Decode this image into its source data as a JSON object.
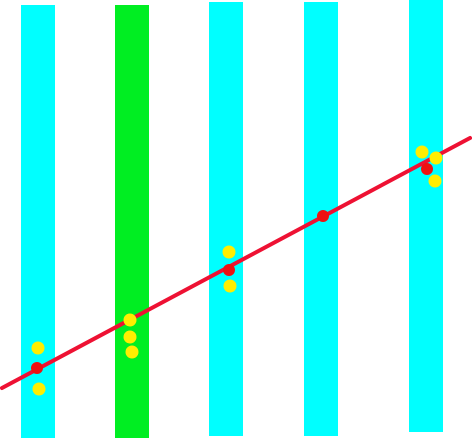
{
  "colors": {
    "background": "#ffffff",
    "column_default": "#00ffff",
    "column_highlight": "#00ee22",
    "line": "#ee1133",
    "point_yellow": "#ffee00",
    "point_red": "#ee1111"
  },
  "columns": [
    {
      "index": 0,
      "highlighted": false
    },
    {
      "index": 1,
      "highlighted": true
    },
    {
      "index": 2,
      "highlighted": false
    },
    {
      "index": 3,
      "highlighted": false
    },
    {
      "index": 4,
      "highlighted": false
    }
  ],
  "points": [
    {
      "column": 0,
      "color": "yellow"
    },
    {
      "column": 0,
      "color": "red"
    },
    {
      "column": 0,
      "color": "yellow"
    },
    {
      "column": 1,
      "color": "yellow"
    },
    {
      "column": 1,
      "color": "yellow"
    },
    {
      "column": 1,
      "color": "yellow"
    },
    {
      "column": 2,
      "color": "yellow"
    },
    {
      "column": 2,
      "color": "red"
    },
    {
      "column": 2,
      "color": "yellow"
    },
    {
      "column": 3,
      "color": "red"
    },
    {
      "column": 4,
      "color": "yellow"
    },
    {
      "column": 4,
      "color": "yellow"
    },
    {
      "column": 4,
      "color": "red"
    },
    {
      "column": 4,
      "color": "yellow"
    }
  ]
}
